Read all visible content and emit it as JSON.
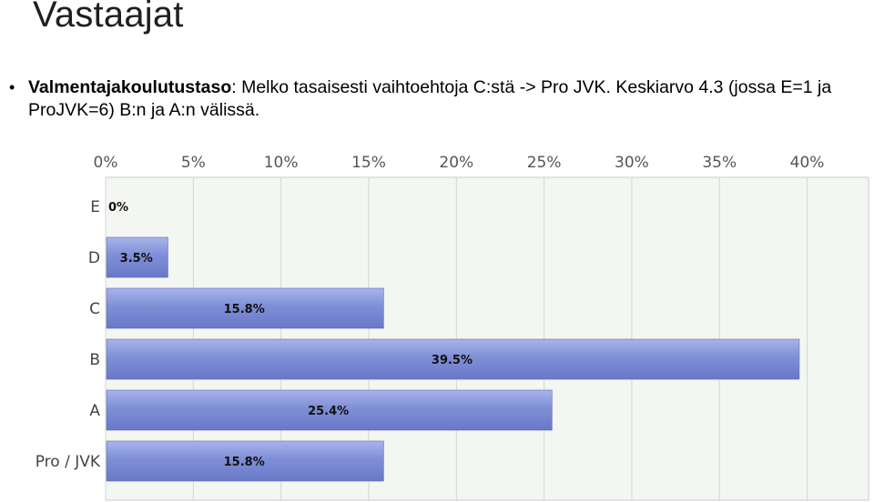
{
  "slide": {
    "title": "Vastaajat",
    "bullet": {
      "bold_lead": "Valmentajakoulutustaso",
      "text": ": Melko tasaisesti vaihtoehtoja C:stä -> Pro JVK. Keskiarvo 4.3 (jossa E=1 ja ProJVK=6) B:n ja A:n välissä."
    }
  },
  "chart_data": {
    "type": "bar",
    "orientation": "horizontal",
    "categories": [
      "E",
      "D",
      "C",
      "B",
      "A",
      "Pro / JVK"
    ],
    "values": [
      0,
      3.5,
      15.8,
      39.5,
      25.4,
      15.8
    ],
    "value_labels": [
      "0%",
      "3.5%",
      "15.8%",
      "39.5%",
      "25.4%",
      "15.8%"
    ],
    "x_ticks": [
      "0%",
      "5%",
      "10%",
      "15%",
      "20%",
      "25%",
      "30%",
      "35%",
      "40%"
    ],
    "xlim": [
      0,
      43.5
    ],
    "tick_step": 5,
    "axis_position": "top",
    "grid": true,
    "colors": {
      "bar_fill": "#7f8fd6",
      "bar_top": "#a8b4ea",
      "bar_bottom": "#6878c8",
      "plot_bg": "#f4f6f2",
      "grid": "#d4d8d0",
      "frame": "#c9cec4"
    }
  }
}
